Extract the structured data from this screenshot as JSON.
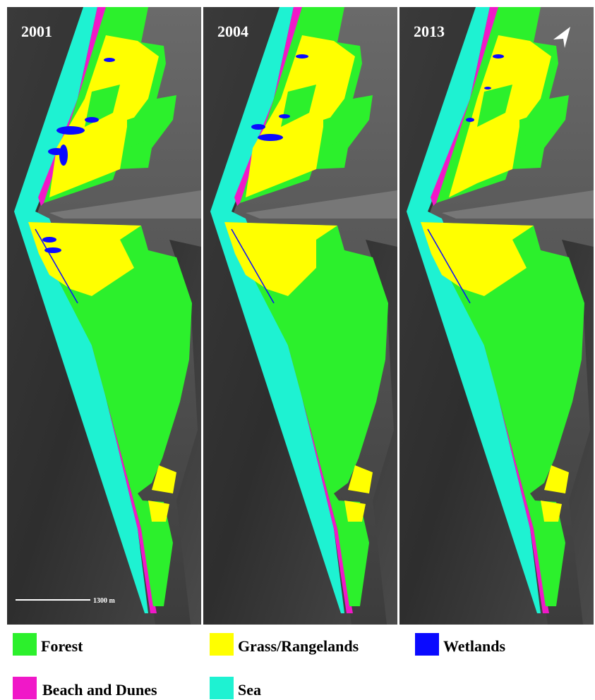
{
  "panels": [
    {
      "year": "2001"
    },
    {
      "year": "2004"
    },
    {
      "year": "2013"
    }
  ],
  "scale_bar": "1300 m",
  "legend": [
    {
      "label": "Forest",
      "color": "#2cf02c"
    },
    {
      "label": "Grass/Rangelands",
      "color": "#ffff00"
    },
    {
      "label": "Wetlands",
      "color": "#0a0aff"
    },
    {
      "label": "Beach and Dunes",
      "color": "#f018c8"
    },
    {
      "label": "Sea",
      "color": "#1ef2d2"
    }
  ]
}
